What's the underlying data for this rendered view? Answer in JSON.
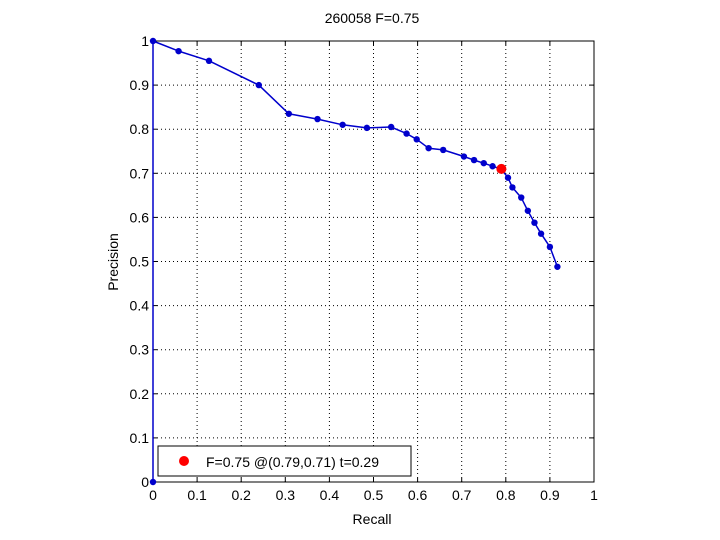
{
  "chart_data": {
    "type": "line",
    "title": "260058 F=0.75",
    "xlabel": "Recall",
    "ylabel": "Precision",
    "xlim": [
      0,
      1
    ],
    "ylim": [
      0,
      1
    ],
    "xticks": [
      0,
      0.1,
      0.2,
      0.3,
      0.4,
      0.5,
      0.6,
      0.7,
      0.8,
      0.9,
      1
    ],
    "yticks": [
      0,
      0.1,
      0.2,
      0.3,
      0.4,
      0.5,
      0.6,
      0.7,
      0.8,
      0.9,
      1
    ],
    "xtick_labels": [
      "0",
      "0.1",
      "0.2",
      "0.3",
      "0.4",
      "0.5",
      "0.6",
      "0.7",
      "0.8",
      "0.9",
      "1"
    ],
    "ytick_labels": [
      "0",
      "0.1",
      "0.2",
      "0.3",
      "0.4",
      "0.5",
      "0.6",
      "0.7",
      "0.8",
      "0.9",
      "1"
    ],
    "grid": true,
    "grid_style": "dotted",
    "legend_position": "bottom-left",
    "series": [
      {
        "color": "#0000cc",
        "marker": "circle",
        "points": [
          [
            0,
            0
          ],
          [
            0,
            1.0
          ],
          [
            0.058,
            0.977
          ],
          [
            0.127,
            0.955
          ],
          [
            0.24,
            0.9
          ],
          [
            0.308,
            0.835
          ],
          [
            0.373,
            0.823
          ],
          [
            0.43,
            0.81
          ],
          [
            0.485,
            0.803
          ],
          [
            0.54,
            0.805
          ],
          [
            0.575,
            0.79
          ],
          [
            0.598,
            0.777
          ],
          [
            0.625,
            0.757
          ],
          [
            0.658,
            0.753
          ],
          [
            0.705,
            0.738
          ],
          [
            0.728,
            0.73
          ],
          [
            0.75,
            0.723
          ],
          [
            0.77,
            0.716
          ],
          [
            0.79,
            0.709
          ],
          [
            0.805,
            0.69
          ],
          [
            0.815,
            0.668
          ],
          [
            0.835,
            0.645
          ],
          [
            0.85,
            0.615
          ],
          [
            0.865,
            0.588
          ],
          [
            0.88,
            0.563
          ],
          [
            0.9,
            0.533
          ],
          [
            0.917,
            0.488
          ]
        ]
      }
    ],
    "highlight": {
      "recall": 0.79,
      "precision": 0.71,
      "color": "#ff0000",
      "label": "F=0.75 @(0.79,0.71) t=0.29"
    }
  }
}
